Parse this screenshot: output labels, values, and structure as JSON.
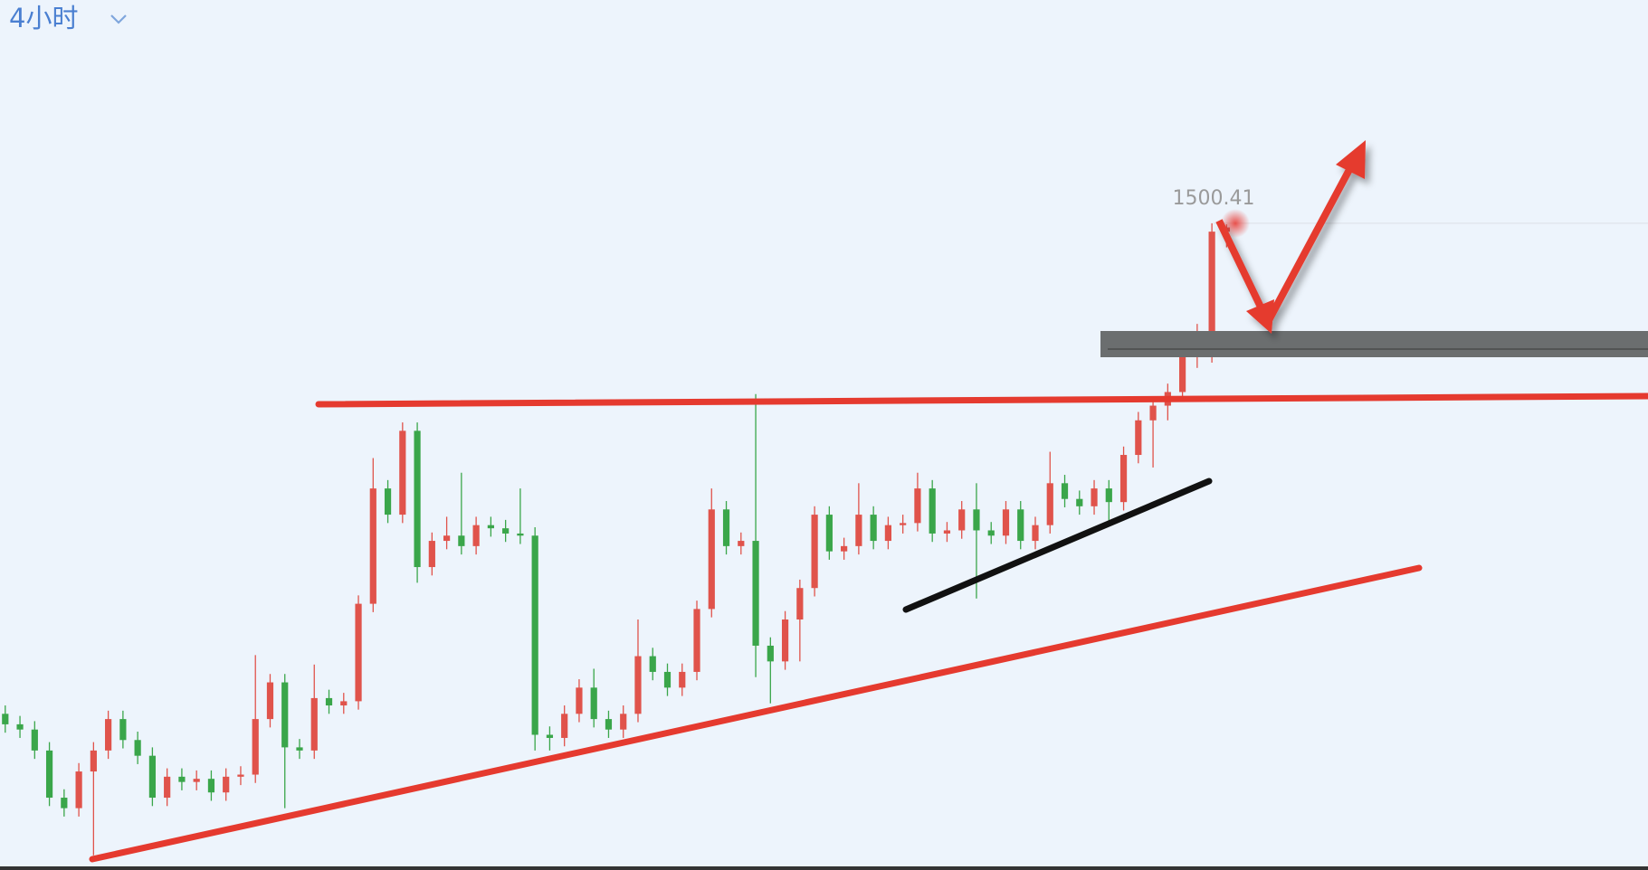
{
  "toolbar": {
    "interval": "4小时"
  },
  "chart_data": {
    "type": "candlestick",
    "up_color": "#e0534b",
    "down_color": "#3aa64a",
    "ylim": [
      1377,
      1543
    ],
    "open": [
      1406.8,
      1404.8,
      1403.8,
      1399.8,
      1390.8,
      1388.8,
      1395.8,
      1399.8,
      1405.8,
      1401.8,
      1398.8,
      1390.8,
      1394.8,
      1393.8,
      1394.4,
      1391.8,
      1394.8,
      1395.2,
      1405.8,
      1412.8,
      1400.4,
      1399.8,
      1409.8,
      1408.4,
      1409.2,
      1427.8,
      1449.8,
      1444.8,
      1460.8,
      1434.8,
      1439.8,
      1440.8,
      1438.8,
      1442.8,
      1442.2,
      1441.2,
      1440.8,
      1402.8,
      1402.2,
      1406.8,
      1411.8,
      1405.8,
      1403.8,
      1406.8,
      1417.8,
      1414.8,
      1411.8,
      1414.8,
      1426.8,
      1445.8,
      1438.8,
      1439.8,
      1419.8,
      1416.8,
      1424.8,
      1430.8,
      1444.8,
      1437.8,
      1438.8,
      1444.8,
      1439.8,
      1442.8,
      1443.2,
      1449.8,
      1441.2,
      1441.8,
      1445.8,
      1441.8,
      1440.8,
      1445.8,
      1439.8,
      1442.8,
      1450.8,
      1447.8,
      1446.4,
      1449.8,
      1447.2,
      1456.2,
      1462.8,
      1465.6,
      1468.2,
      1477.2,
      1479.6,
      1498.8
    ],
    "high": [
      1408.4,
      1406.4,
      1405.4,
      1401.4,
      1392.4,
      1397.4,
      1401.4,
      1407.4,
      1407.4,
      1403.4,
      1400.4,
      1396.4,
      1396.4,
      1396.0,
      1396.0,
      1396.4,
      1396.8,
      1418.0,
      1414.4,
      1414.4,
      1402.0,
      1416.2,
      1411.4,
      1410.8,
      1429.4,
      1455.6,
      1451.4,
      1462.4,
      1462.4,
      1441.4,
      1444.4,
      1452.8,
      1444.4,
      1444.4,
      1443.8,
      1449.8,
      1442.4,
      1404.4,
      1408.4,
      1413.4,
      1415.4,
      1407.4,
      1408.4,
      1424.8,
      1419.4,
      1416.4,
      1416.4,
      1428.4,
      1449.8,
      1447.4,
      1441.4,
      1467.8,
      1421.4,
      1426.4,
      1432.4,
      1446.4,
      1446.4,
      1440.4,
      1450.8,
      1446.4,
      1444.4,
      1444.8,
      1452.8,
      1451.4,
      1443.4,
      1447.4,
      1450.8,
      1443.4,
      1447.4,
      1447.4,
      1444.4,
      1456.8,
      1452.4,
      1449.4,
      1451.4,
      1451.4,
      1457.8,
      1464.4,
      1467.2,
      1469.8,
      1478.8,
      1481.2,
      1500.41,
      1500.2
    ],
    "low": [
      1403.2,
      1402.2,
      1398.2,
      1389.2,
      1387.2,
      1387.2,
      1379.8,
      1398.2,
      1400.2,
      1397.2,
      1389.2,
      1389.2,
      1392.2,
      1392.2,
      1390.2,
      1390.2,
      1393.2,
      1393.6,
      1404.2,
      1388.8,
      1398.2,
      1398.2,
      1406.8,
      1406.8,
      1407.6,
      1426.2,
      1443.2,
      1443.2,
      1431.8,
      1433.2,
      1438.2,
      1437.2,
      1437.2,
      1440.6,
      1439.6,
      1439.2,
      1399.8,
      1399.8,
      1400.6,
      1405.2,
      1404.2,
      1402.2,
      1402.2,
      1405.2,
      1413.2,
      1410.2,
      1410.2,
      1413.2,
      1425.2,
      1437.2,
      1437.2,
      1413.8,
      1408.8,
      1415.2,
      1416.8,
      1429.2,
      1436.2,
      1436.2,
      1437.2,
      1438.2,
      1438.2,
      1441.2,
      1441.6,
      1439.6,
      1439.6,
      1440.2,
      1428.8,
      1439.2,
      1439.2,
      1438.2,
      1438.2,
      1441.2,
      1446.2,
      1444.8,
      1444.8,
      1442.8,
      1445.6,
      1454.6,
      1453.8,
      1462.8,
      1466.6,
      1472.8,
      1473.8,
      1495.8
    ],
    "close": [
      1404.8,
      1403.8,
      1399.8,
      1390.8,
      1388.8,
      1395.8,
      1399.8,
      1405.8,
      1401.8,
      1398.8,
      1390.8,
      1394.8,
      1393.8,
      1394.4,
      1391.8,
      1394.8,
      1395.2,
      1405.8,
      1412.8,
      1400.4,
      1399.8,
      1409.8,
      1408.4,
      1409.2,
      1427.8,
      1449.8,
      1444.8,
      1460.8,
      1434.8,
      1439.8,
      1440.8,
      1438.8,
      1442.8,
      1442.2,
      1441.2,
      1440.8,
      1402.8,
      1402.2,
      1406.8,
      1411.8,
      1405.8,
      1403.8,
      1406.8,
      1417.8,
      1414.8,
      1411.8,
      1414.8,
      1426.8,
      1445.8,
      1438.8,
      1439.8,
      1419.8,
      1416.8,
      1424.8,
      1430.8,
      1444.8,
      1437.8,
      1438.8,
      1444.8,
      1439.8,
      1442.8,
      1443.2,
      1449.8,
      1441.2,
      1441.8,
      1445.8,
      1441.8,
      1440.8,
      1445.8,
      1439.8,
      1442.8,
      1450.8,
      1447.8,
      1446.4,
      1449.8,
      1447.2,
      1456.2,
      1462.8,
      1465.6,
      1468.2,
      1477.2,
      1479.6,
      1498.8,
      1499.6
    ]
  }
}
